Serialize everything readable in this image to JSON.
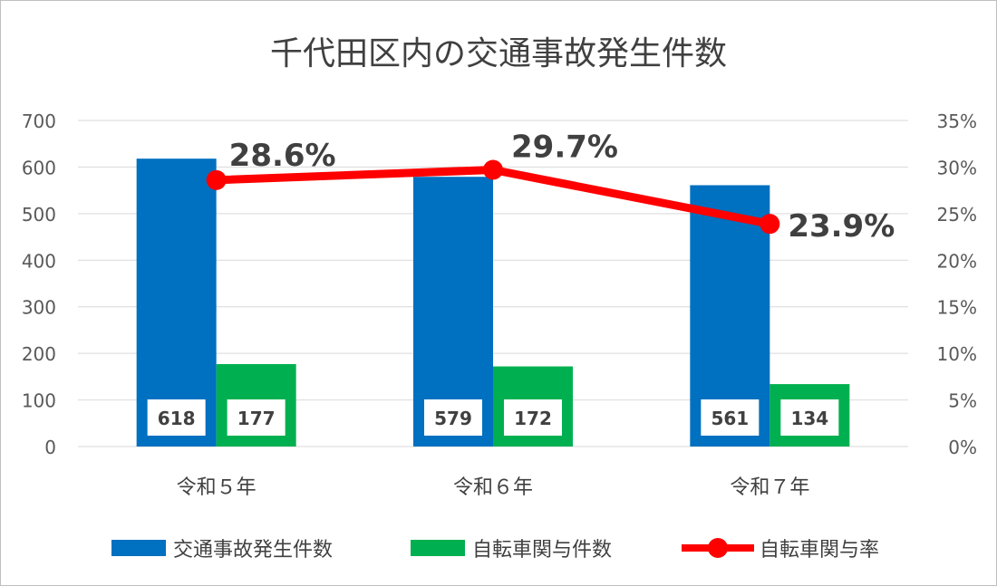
{
  "chart_data": {
    "type": "bar",
    "title": "千代田区内の交通事故発生件数",
    "categories": [
      "令和５年",
      "令和６年",
      "令和７年"
    ],
    "series": [
      {
        "name": "交通事故発生件数",
        "type": "bar",
        "axis": "left",
        "color": "#0070c0",
        "values": [
          618,
          579,
          561
        ]
      },
      {
        "name": "自転車関与件数",
        "type": "bar",
        "axis": "left",
        "color": "#00b050",
        "values": [
          177,
          172,
          134
        ]
      },
      {
        "name": "自転車関与率",
        "type": "line",
        "axis": "right",
        "color": "#ff0000",
        "values": [
          28.6,
          29.7,
          23.9
        ]
      }
    ],
    "value_labels": [
      [
        "618",
        "177"
      ],
      [
        "579",
        "172"
      ],
      [
        "561",
        "134"
      ]
    ],
    "rate_labels": [
      "28.6%",
      "29.7%",
      "23.9%"
    ],
    "y_left": {
      "min": 0,
      "max": 700,
      "ticks": [
        "0",
        "100",
        "200",
        "300",
        "400",
        "500",
        "600",
        "700"
      ]
    },
    "y_right": {
      "min": 0,
      "max": 35,
      "ticks": [
        "0%",
        "5%",
        "10%",
        "15%",
        "20%",
        "25%",
        "30%",
        "35%"
      ]
    },
    "grid": true,
    "legend": "bottom"
  }
}
